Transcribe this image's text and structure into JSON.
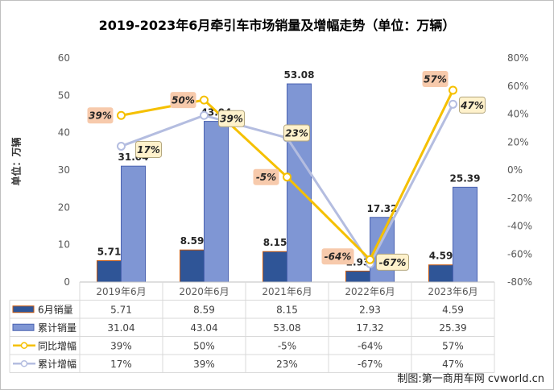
{
  "chart_data": {
    "type": "bar+line",
    "title": "2019-2023年6月牵引车市场销量及增幅走势（单位：万辆）",
    "ylabel": "单位：万辆",
    "ylim": [
      0,
      60
    ],
    "y_ticks": [
      "0",
      "10",
      "20",
      "30",
      "40",
      "50",
      "60"
    ],
    "y2lim": [
      -80,
      80
    ],
    "y2_ticks": [
      "-80%",
      "-60%",
      "-40%",
      "-20%",
      "0%",
      "20%",
      "40%",
      "60%",
      "80%"
    ],
    "categories": [
      "2019年6月",
      "2020年6月",
      "2021年6月",
      "2022年6月",
      "2023年6月"
    ],
    "series": [
      {
        "name": "6月销量",
        "type": "bar",
        "axis": "left",
        "color": "#2f5597",
        "values": [
          5.71,
          8.59,
          8.15,
          2.93,
          4.59
        ],
        "labels": [
          "5.71",
          "8.59",
          "8.15",
          "2.93",
          "4.59"
        ]
      },
      {
        "name": "累计销量",
        "type": "bar",
        "axis": "left",
        "color": "#7f96d4",
        "values": [
          31.04,
          43.04,
          53.08,
          17.32,
          25.39
        ],
        "labels": [
          "31.04",
          "43.04",
          "53.08",
          "17.32",
          "25.39"
        ]
      },
      {
        "name": "同比增幅",
        "type": "line",
        "axis": "right",
        "color": "#f5c000",
        "values": [
          39,
          50,
          -5,
          -64,
          57
        ],
        "labels": [
          "39%",
          "50%",
          "-5%",
          "-64%",
          "57%"
        ]
      },
      {
        "name": "累计增幅",
        "type": "line",
        "axis": "right",
        "color": "#b4bde0",
        "values": [
          17,
          39,
          23,
          -67,
          47
        ],
        "labels": [
          "17%",
          "39%",
          "23%",
          "-67%",
          "47%"
        ]
      }
    ],
    "legend_position": "table-below",
    "grid": false
  },
  "credit": "制图:第一商用车网 cvworld.cn"
}
